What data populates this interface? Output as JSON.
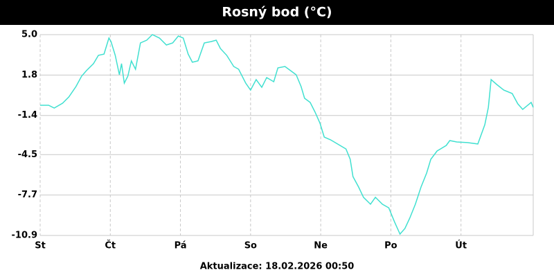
{
  "chart_data": {
    "type": "line",
    "title": "Rosný bod (°C)",
    "footer": "Aktualizace: 18.02.2026 00:50",
    "x": [
      0,
      0.12,
      0.2,
      0.32,
      0.41,
      0.51,
      0.59,
      0.66,
      0.76,
      0.83,
      0.91,
      0.98,
      1.01,
      1.07,
      1.13,
      1.16,
      1.2,
      1.25,
      1.3,
      1.36,
      1.43,
      1.52,
      1.6,
      1.7,
      1.8,
      1.89,
      1.97,
      2.04,
      2.11,
      2.17,
      2.25,
      2.34,
      2.44,
      2.51,
      2.57,
      2.66,
      2.76,
      2.83,
      2.93,
      3,
      3.08,
      3.16,
      3.23,
      3.33,
      3.39,
      3.49,
      3.57,
      3.65,
      3.72,
      3.77,
      3.85,
      3.92,
      3.99,
      4.05,
      4.14,
      4.24,
      4.36,
      4.42,
      4.46,
      4.54,
      4.61,
      4.71,
      4.78,
      4.88,
      4.97,
      5.05,
      5.13,
      5.2,
      5.27,
      5.35,
      5.43,
      5.51,
      5.57,
      5.66,
      5.79,
      5.84,
      5.94,
      6.09,
      6.24,
      6.34,
      6.39,
      6.43,
      6.51,
      6.61,
      6.73,
      6.81,
      6.88,
      7,
      7.03
    ],
    "series": [
      {
        "name": "Rosný bod",
        "color": "#40e0d0",
        "values": [
          -0.59,
          -0.59,
          -0.81,
          -0.43,
          0.07,
          0.89,
          1.71,
          2.15,
          2.7,
          3.36,
          3.46,
          4.73,
          4.45,
          3.36,
          1.82,
          2.7,
          1.16,
          1.71,
          2.92,
          2.26,
          4.34,
          4.56,
          5.0,
          4.73,
          4.18,
          4.34,
          4.89,
          4.73,
          3.46,
          2.81,
          2.92,
          4.34,
          4.45,
          4.56,
          3.9,
          3.36,
          2.48,
          2.26,
          1.16,
          0.61,
          1.44,
          0.83,
          1.6,
          1.27,
          2.37,
          2.48,
          2.15,
          1.82,
          0.89,
          -0.04,
          -0.37,
          -1.14,
          -2.02,
          -3.11,
          -3.33,
          -3.66,
          -4.05,
          -4.87,
          -6.24,
          -7.06,
          -7.88,
          -8.43,
          -7.88,
          -8.43,
          -8.71,
          -9.8,
          -10.79,
          -10.35,
          -9.53,
          -8.43,
          -7.06,
          -5.96,
          -4.87,
          -4.21,
          -3.77,
          -3.39,
          -3.5,
          -3.55,
          -3.66,
          -2.13,
          -0.76,
          1.44,
          1.05,
          0.61,
          0.34,
          -0.48,
          -0.92,
          -0.37,
          -0.76
        ]
      }
    ],
    "xlim": [
      0,
      7.03
    ],
    "xticks": [
      {
        "value": 0,
        "label": "St"
      },
      {
        "value": 1,
        "label": "Čt"
      },
      {
        "value": 2,
        "label": "Pá"
      },
      {
        "value": 3,
        "label": "So"
      },
      {
        "value": 4,
        "label": "Ne"
      },
      {
        "value": 5,
        "label": "Po"
      },
      {
        "value": 6,
        "label": "Út"
      }
    ],
    "ylim": [
      -10.9,
      5.0
    ],
    "yticks": [
      {
        "value": 5,
        "label": "5.0"
      },
      1.8,
      -1.4,
      -4.5,
      -7.7,
      -10.9
    ],
    "grid": true
  }
}
